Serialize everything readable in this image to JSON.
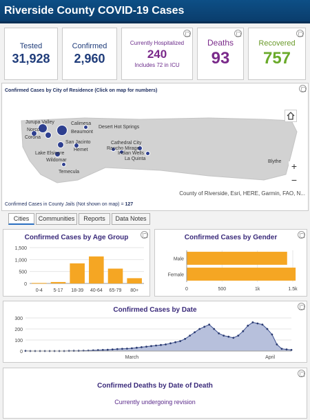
{
  "header": {
    "title": "Riverside County COVID-19 Cases"
  },
  "stats": {
    "tested": {
      "label": "Tested",
      "value": "31,928"
    },
    "confirmed": {
      "label": "Confirmed",
      "value": "2,960"
    },
    "hospitalized": {
      "label": "Currently Hospitalized",
      "value": "240",
      "sub": "Includes 72 in ICU"
    },
    "deaths": {
      "label": "Deaths",
      "value": "93"
    },
    "recovered": {
      "label": "Recovered",
      "value": "757"
    }
  },
  "map": {
    "title": "Confirmed Cases by City of Residence (Click on map for numbers)",
    "attribution": "County of Riverside, Esri, HERE, Garmin, FAO, N...",
    "jail_note": "Confirmed Cases in County Jails (Not shown on map) = ",
    "jail_count": "127",
    "zoom_in": "+",
    "zoom_out": "−",
    "home_icon": "home-icon",
    "cities": {
      "jurupa_valley": "Jurupa Valley",
      "calimesa": "Calimesa",
      "norco": "Norco",
      "beaumont": "Beaumont",
      "corona": "Corona",
      "san_jacinto": "San Jacinto",
      "hemet": "Hemet",
      "lake_elsinore": "Lake Elsinore",
      "wildomar": "Wildomar",
      "temecula": "Temecula",
      "desert_hot_springs": "Desert Hot Springs",
      "cathedral_city": "Cathedral City",
      "rancho_mirage": "Rancho Mirage",
      "indian_wells": "Indian Wells",
      "la_quinta": "La Quinta",
      "blythe": "Blythe"
    }
  },
  "tabs": [
    "Cities",
    "Communities",
    "Reports",
    "Data Notes"
  ],
  "age_chart": {
    "title": "Confirmed Cases by Age Group",
    "chart_data": {
      "type": "bar",
      "categories": [
        "0-4",
        "5-17",
        "18-39",
        "40-64",
        "65-79",
        "80+"
      ],
      "values": [
        20,
        60,
        840,
        1130,
        620,
        220
      ],
      "yticks": [
        "0",
        "500",
        "1,000",
        "1,500"
      ],
      "ylim": [
        0,
        1500
      ],
      "color": "#f5a623"
    }
  },
  "gender_chart": {
    "title": "Confirmed Cases by Gender",
    "chart_data": {
      "type": "bar",
      "orientation": "horizontal",
      "categories": [
        "Male",
        "Female"
      ],
      "values": [
        1420,
        1540
      ],
      "xticks": [
        "0",
        "500",
        "1k",
        "1.5k"
      ],
      "xlim": [
        0,
        1500
      ],
      "color": "#f5a623"
    }
  },
  "date_chart": {
    "title": "Confirmed Cases by Date",
    "chart_data": {
      "type": "area",
      "x_labels": [
        "March",
        "April"
      ],
      "yticks": [
        "0",
        "100",
        "200",
        "300"
      ],
      "ylim": [
        0,
        300
      ],
      "values": [
        1,
        0,
        0,
        0,
        0,
        0,
        0,
        0,
        0,
        1,
        2,
        2,
        3,
        4,
        6,
        8,
        10,
        12,
        15,
        18,
        20,
        22,
        25,
        30,
        35,
        40,
        45,
        50,
        55,
        60,
        70,
        80,
        90,
        110,
        140,
        170,
        200,
        220,
        240,
        200,
        160,
        140,
        130,
        120,
        140,
        180,
        230,
        260,
        250,
        240,
        200,
        150,
        60,
        20,
        15,
        10
      ],
      "color": "#3b4f8f",
      "fill": "#b7c0dc"
    }
  },
  "deaths_panel": {
    "title": "Confirmed Deaths by Date of Death",
    "note": "Currently undergoing revision"
  }
}
